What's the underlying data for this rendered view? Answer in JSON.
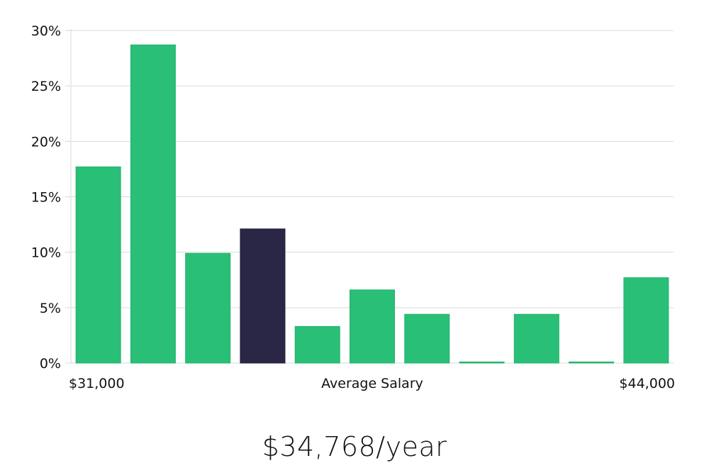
{
  "chart_data": {
    "type": "bar",
    "title": "",
    "xlabel": "Average Salary",
    "ylabel": "",
    "x_start_label": "$31,000",
    "x_end_label": "$44,000",
    "ylim": [
      0,
      30
    ],
    "yticks": [
      0,
      5,
      10,
      15,
      20,
      25,
      30
    ],
    "ytick_labels": [
      "0%",
      "5%",
      "10%",
      "15%",
      "20%",
      "25%",
      "30%"
    ],
    "grid": true,
    "values": [
      17.7,
      28.7,
      9.9,
      12.1,
      3.3,
      6.6,
      4.4,
      0.1,
      4.4,
      0.1,
      7.7
    ],
    "highlight_index": 3,
    "colors": {
      "bar": "#2abf77",
      "highlight": "#2a2645",
      "grid": "#d9d9d9",
      "axis": "#bbbbbb"
    }
  },
  "salary": {
    "text": "$34,768/year"
  }
}
